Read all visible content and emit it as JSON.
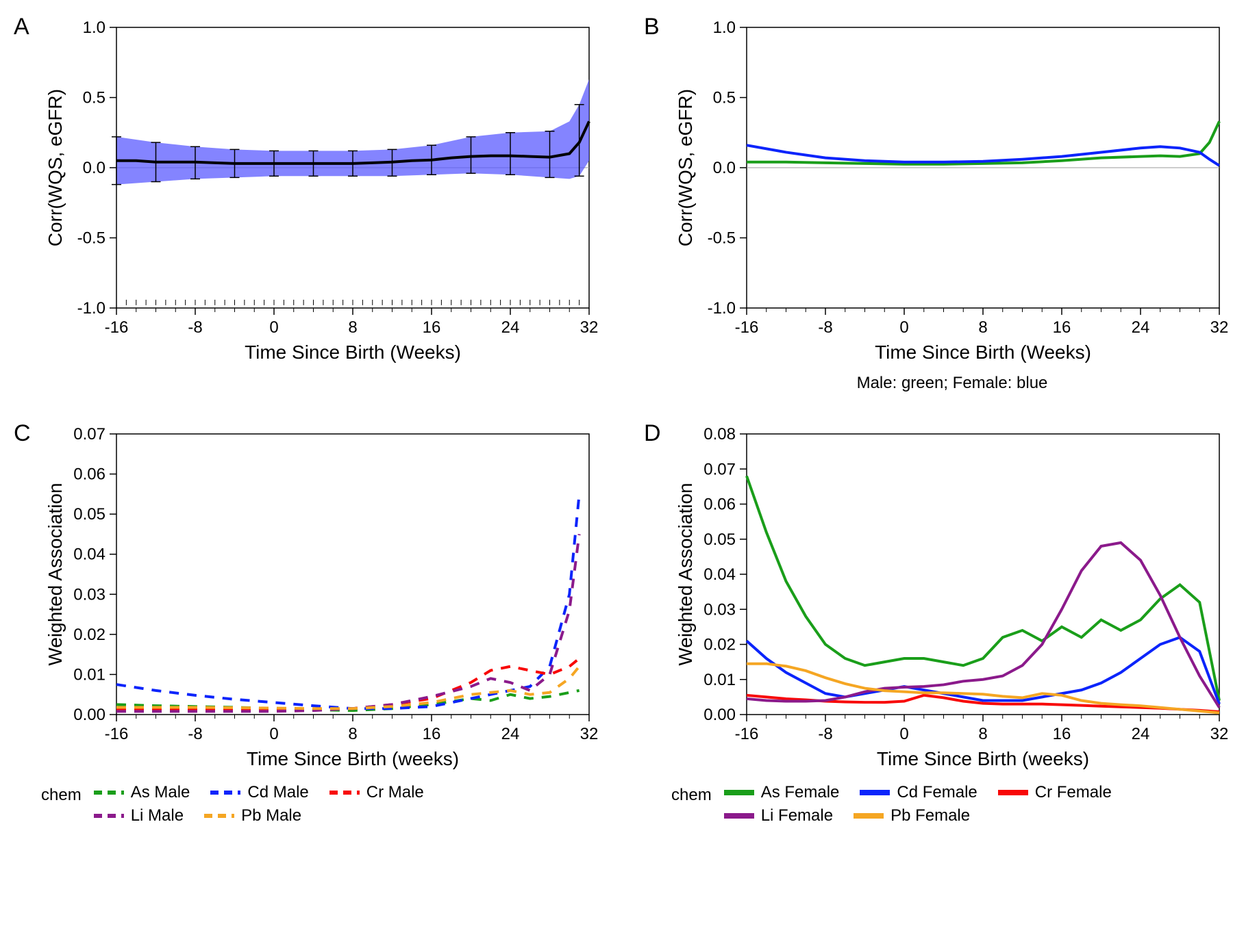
{
  "palette": {
    "green": "#1a9e1a",
    "blue": "#0b24fb",
    "red": "#f80707",
    "purple": "#8b1a8b",
    "orange": "#f5a623",
    "band": "#5b5bff",
    "black": "#000000",
    "grey": "#888888"
  },
  "fonts": {
    "axis_title_size": 28,
    "tick_label_size": 24,
    "panel_label_size": 34,
    "legend_size": 24
  },
  "panelA": {
    "label": "A",
    "xlim": [
      -16,
      32
    ],
    "ylim": [
      -1.0,
      1.0
    ],
    "xticks": [
      -16,
      -8,
      0,
      8,
      16,
      24,
      32
    ],
    "yticks": [
      -1.0,
      -0.5,
      0.0,
      0.5,
      1.0
    ],
    "xlabel": "Time Since Birth (Weeks)",
    "ylabel": "Corr(WQS, eGFR)",
    "mean_line": {
      "x": [
        -16,
        -14,
        -12,
        -10,
        -8,
        -6,
        -4,
        -2,
        0,
        2,
        4,
        6,
        8,
        10,
        12,
        14,
        16,
        18,
        20,
        22,
        24,
        26,
        28,
        30,
        31,
        32
      ],
      "y": [
        0.05,
        0.05,
        0.04,
        0.04,
        0.04,
        0.035,
        0.03,
        0.03,
        0.03,
        0.03,
        0.03,
        0.03,
        0.03,
        0.035,
        0.04,
        0.05,
        0.055,
        0.07,
        0.08,
        0.085,
        0.085,
        0.08,
        0.075,
        0.1,
        0.18,
        0.33
      ]
    },
    "band_upper": {
      "x": [
        -16,
        -12,
        -8,
        -4,
        0,
        4,
        8,
        12,
        16,
        20,
        24,
        28,
        30,
        31,
        32
      ],
      "y": [
        0.22,
        0.18,
        0.15,
        0.13,
        0.12,
        0.12,
        0.12,
        0.13,
        0.16,
        0.22,
        0.25,
        0.26,
        0.33,
        0.45,
        0.63
      ]
    },
    "band_lower": {
      "x": [
        -16,
        -12,
        -8,
        -4,
        0,
        4,
        8,
        12,
        16,
        20,
        24,
        28,
        30,
        31,
        32
      ],
      "y": [
        -0.12,
        -0.1,
        -0.08,
        -0.07,
        -0.06,
        -0.06,
        -0.06,
        -0.06,
        -0.05,
        -0.04,
        -0.05,
        -0.07,
        -0.08,
        -0.06,
        0.05
      ]
    },
    "error_bars": {
      "x": [
        -16,
        -12,
        -8,
        -4,
        0,
        4,
        8,
        12,
        16,
        20,
        24,
        28,
        31
      ],
      "lo": [
        -0.12,
        -0.1,
        -0.08,
        -0.07,
        -0.06,
        -0.06,
        -0.06,
        -0.06,
        -0.05,
        -0.04,
        -0.05,
        -0.07,
        -0.06
      ],
      "hi": [
        0.22,
        0.18,
        0.15,
        0.13,
        0.12,
        0.12,
        0.12,
        0.13,
        0.16,
        0.22,
        0.25,
        0.26,
        0.45
      ]
    },
    "rug_y": -0.98
  },
  "panelB": {
    "label": "B",
    "xlim": [
      -16,
      32
    ],
    "ylim": [
      -1.0,
      1.0
    ],
    "xticks": [
      -16,
      -8,
      0,
      8,
      16,
      24,
      32
    ],
    "yticks": [
      -1.0,
      -0.5,
      0.0,
      0.5,
      1.0
    ],
    "xlabel": "Time Since Birth (Weeks)",
    "ylabel": "Corr(WQS, eGFR)",
    "caption": "Male: green; Female: blue",
    "series": [
      {
        "name": "Male",
        "color_key": "green",
        "x": [
          -16,
          -12,
          -8,
          -4,
          0,
          4,
          8,
          12,
          16,
          20,
          24,
          26,
          28,
          30,
          31,
          32
        ],
        "y": [
          0.04,
          0.04,
          0.035,
          0.03,
          0.025,
          0.025,
          0.03,
          0.035,
          0.05,
          0.07,
          0.08,
          0.085,
          0.08,
          0.1,
          0.18,
          0.33
        ]
      },
      {
        "name": "Female",
        "color_key": "blue",
        "x": [
          -16,
          -12,
          -8,
          -4,
          0,
          4,
          8,
          12,
          16,
          20,
          24,
          26,
          28,
          30,
          31,
          32
        ],
        "y": [
          0.16,
          0.11,
          0.07,
          0.05,
          0.04,
          0.04,
          0.045,
          0.06,
          0.08,
          0.11,
          0.14,
          0.15,
          0.14,
          0.11,
          0.06,
          0.015
        ]
      }
    ]
  },
  "panelC": {
    "label": "C",
    "xlim": [
      -16,
      32
    ],
    "ylim": [
      0,
      0.07
    ],
    "xticks": [
      -16,
      -8,
      0,
      8,
      16,
      24,
      32
    ],
    "yticks": [
      0,
      0.01,
      0.02,
      0.03,
      0.04,
      0.05,
      0.06,
      0.07
    ],
    "xlabel": "Time Since Birth (weeks)",
    "ylabel": "Weighted Association",
    "legend_title": "chem",
    "dashed": true,
    "line_width": 4,
    "series": [
      {
        "name": "As Male",
        "color_key": "green",
        "x": [
          -16,
          -12,
          -8,
          -4,
          0,
          4,
          8,
          12,
          16,
          20,
          22,
          24,
          26,
          28,
          30,
          31
        ],
        "y": [
          0.0025,
          0.0022,
          0.002,
          0.0018,
          0.0015,
          0.0012,
          0.001,
          0.0015,
          0.0025,
          0.004,
          0.0035,
          0.005,
          0.004,
          0.0045,
          0.0055,
          0.006
        ]
      },
      {
        "name": "Cd Male",
        "color_key": "blue",
        "x": [
          -16,
          -12,
          -8,
          -4,
          0,
          4,
          8,
          12,
          16,
          20,
          22,
          24,
          26,
          28,
          30,
          31
        ],
        "y": [
          0.0075,
          0.006,
          0.0048,
          0.0038,
          0.003,
          0.0022,
          0.0015,
          0.0015,
          0.002,
          0.004,
          0.005,
          0.006,
          0.007,
          0.012,
          0.03,
          0.055
        ]
      },
      {
        "name": "Cr Male",
        "color_key": "red",
        "x": [
          -16,
          -12,
          -8,
          -4,
          0,
          4,
          8,
          12,
          16,
          20,
          22,
          24,
          26,
          28,
          30,
          31
        ],
        "y": [
          0.0012,
          0.0012,
          0.0012,
          0.0012,
          0.0012,
          0.0012,
          0.0015,
          0.0025,
          0.004,
          0.008,
          0.011,
          0.012,
          0.011,
          0.01,
          0.012,
          0.014
        ]
      },
      {
        "name": "Li Male",
        "color_key": "purple",
        "x": [
          -16,
          -12,
          -8,
          -4,
          0,
          4,
          8,
          12,
          16,
          20,
          22,
          24,
          26,
          28,
          30,
          31
        ],
        "y": [
          0.0008,
          0.0008,
          0.0008,
          0.0008,
          0.0008,
          0.001,
          0.0015,
          0.0025,
          0.0045,
          0.007,
          0.009,
          0.008,
          0.006,
          0.01,
          0.026,
          0.045
        ]
      },
      {
        "name": "Pb Male",
        "color_key": "orange",
        "x": [
          -16,
          -12,
          -8,
          -4,
          0,
          4,
          8,
          12,
          16,
          20,
          22,
          24,
          26,
          28,
          30,
          31
        ],
        "y": [
          0.0018,
          0.0018,
          0.0018,
          0.0017,
          0.0016,
          0.0015,
          0.0015,
          0.002,
          0.003,
          0.005,
          0.0055,
          0.006,
          0.005,
          0.0055,
          0.009,
          0.012
        ]
      }
    ]
  },
  "panelD": {
    "label": "D",
    "xlim": [
      -16,
      32
    ],
    "ylim": [
      0,
      0.08
    ],
    "xticks": [
      -16,
      -8,
      0,
      8,
      16,
      24,
      32
    ],
    "yticks": [
      0,
      0.01,
      0.02,
      0.03,
      0.04,
      0.05,
      0.06,
      0.07,
      0.08
    ],
    "xlabel": "Time Since Birth (weeks)",
    "ylabel": "Weighted Association",
    "legend_title": "chem",
    "dashed": false,
    "line_width": 4,
    "series": [
      {
        "name": "As Female",
        "color_key": "green",
        "x": [
          -16,
          -14,
          -12,
          -10,
          -8,
          -6,
          -4,
          -2,
          0,
          2,
          4,
          6,
          8,
          10,
          12,
          14,
          16,
          18,
          20,
          22,
          24,
          26,
          28,
          30,
          32
        ],
        "y": [
          0.068,
          0.052,
          0.038,
          0.028,
          0.02,
          0.016,
          0.014,
          0.015,
          0.016,
          0.016,
          0.015,
          0.014,
          0.016,
          0.022,
          0.024,
          0.021,
          0.025,
          0.022,
          0.027,
          0.024,
          0.027,
          0.033,
          0.037,
          0.032,
          0.004
        ]
      },
      {
        "name": "Cd Female",
        "color_key": "blue",
        "x": [
          -16,
          -14,
          -12,
          -10,
          -8,
          -6,
          -4,
          -2,
          0,
          2,
          4,
          6,
          8,
          10,
          12,
          14,
          16,
          18,
          20,
          22,
          24,
          26,
          28,
          30,
          32
        ],
        "y": [
          0.021,
          0.016,
          0.012,
          0.009,
          0.006,
          0.005,
          0.006,
          0.007,
          0.008,
          0.007,
          0.006,
          0.005,
          0.004,
          0.004,
          0.004,
          0.005,
          0.006,
          0.007,
          0.009,
          0.012,
          0.016,
          0.02,
          0.022,
          0.018,
          0.003
        ]
      },
      {
        "name": "Cr Female",
        "color_key": "red",
        "x": [
          -16,
          -14,
          -12,
          -10,
          -8,
          -6,
          -4,
          -2,
          0,
          2,
          4,
          6,
          8,
          10,
          12,
          14,
          16,
          18,
          20,
          22,
          24,
          26,
          28,
          30,
          32
        ],
        "y": [
          0.0055,
          0.005,
          0.0045,
          0.0042,
          0.0038,
          0.0036,
          0.0035,
          0.0035,
          0.0038,
          0.0055,
          0.0048,
          0.0038,
          0.0032,
          0.003,
          0.003,
          0.003,
          0.0028,
          0.0026,
          0.0024,
          0.0022,
          0.002,
          0.0018,
          0.0015,
          0.0012,
          0.0008
        ]
      },
      {
        "name": "Li Female",
        "color_key": "purple",
        "x": [
          -16,
          -14,
          -12,
          -10,
          -8,
          -6,
          -4,
          -2,
          0,
          2,
          4,
          6,
          8,
          10,
          12,
          14,
          16,
          18,
          20,
          22,
          24,
          26,
          28,
          30,
          32
        ],
        "y": [
          0.0045,
          0.004,
          0.0038,
          0.0038,
          0.004,
          0.005,
          0.0065,
          0.0075,
          0.0078,
          0.008,
          0.0085,
          0.0095,
          0.01,
          0.011,
          0.014,
          0.02,
          0.03,
          0.041,
          0.048,
          0.049,
          0.044,
          0.034,
          0.022,
          0.011,
          0.002
        ]
      },
      {
        "name": "Pb Female",
        "color_key": "orange",
        "x": [
          -16,
          -14,
          -12,
          -10,
          -8,
          -6,
          -4,
          -2,
          0,
          2,
          4,
          6,
          8,
          10,
          12,
          14,
          16,
          18,
          20,
          22,
          24,
          26,
          28,
          30,
          32
        ],
        "y": [
          0.0145,
          0.0145,
          0.0138,
          0.0125,
          0.0105,
          0.0088,
          0.0075,
          0.0068,
          0.0065,
          0.0062,
          0.0062,
          0.006,
          0.0058,
          0.0052,
          0.0048,
          0.006,
          0.0055,
          0.004,
          0.0032,
          0.0028,
          0.0025,
          0.002,
          0.0015,
          0.001,
          0.0005
        ]
      }
    ]
  }
}
